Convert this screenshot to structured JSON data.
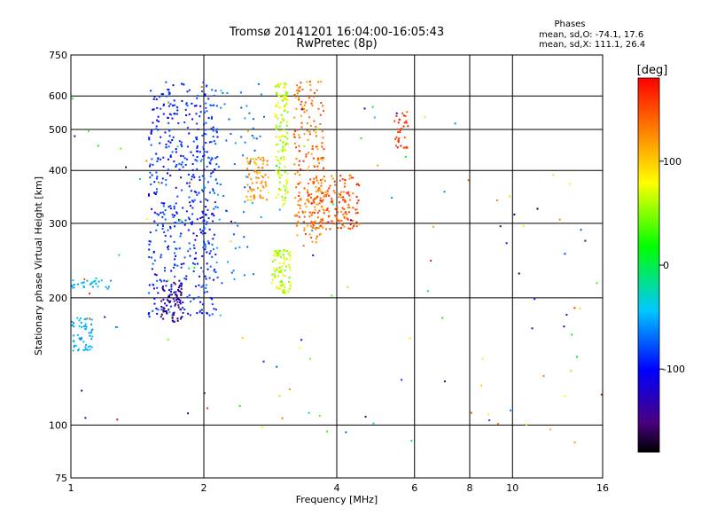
{
  "chart_data": {
    "type": "scatter",
    "title": "Tromsø 20141201 16:04:00-16:05:43",
    "subtitle": "RwPretec (8p)",
    "xlabel": "Frequency [MHz]",
    "ylabel": "Stationary phase Virtual Height [km]",
    "x_scale": "log",
    "y_scale": "log",
    "xlim": [
      1,
      16
    ],
    "ylim": [
      75,
      750
    ],
    "x_ticks": [
      1,
      2,
      4,
      6,
      8,
      10,
      16
    ],
    "y_ticks": [
      75,
      100,
      200,
      300,
      400,
      500,
      600,
      750
    ],
    "x_tick_labels": [
      "1",
      "2",
      "4",
      "6",
      "8",
      "10",
      "16"
    ],
    "y_tick_labels": [
      "75",
      "100",
      "200",
      "300",
      "400",
      "500",
      "600",
      "750"
    ],
    "grid": true,
    "phase_box": {
      "title": "Phases",
      "line_o": "mean, sd,O: -74.1, 17.6",
      "line_x": "mean, sd,X: 111.1, 26.4"
    },
    "colorbar": {
      "label": "[deg]",
      "range": [
        -180,
        180
      ],
      "ticks": [
        100,
        0,
        -100
      ],
      "tick_labels": [
        "100",
        "0",
        "-100"
      ],
      "colormap": "rainbow"
    },
    "clusters": [
      {
        "f": [
          1.5,
          2.15
        ],
        "h": [
          180,
          650
        ],
        "phase": [
          -110,
          -70
        ],
        "n": 520
      },
      {
        "f": [
          1.0,
          1.12
        ],
        "h": [
          150,
          180
        ],
        "phase": [
          -60,
          -40
        ],
        "n": 60
      },
      {
        "f": [
          1.0,
          1.25
        ],
        "h": [
          210,
          220
        ],
        "phase": [
          -60,
          -40
        ],
        "n": 30
      },
      {
        "f": [
          1.6,
          1.8
        ],
        "h": [
          175,
          220
        ],
        "phase": [
          -170,
          -120
        ],
        "n": 70
      },
      {
        "f": [
          2.5,
          2.8
        ],
        "h": [
          340,
          430
        ],
        "phase": [
          100,
          140
        ],
        "n": 70
      },
      {
        "f": [
          2.9,
          3.1
        ],
        "h": [
          330,
          650
        ],
        "phase": [
          40,
          90
        ],
        "n": 130
      },
      {
        "f": [
          2.85,
          3.15
        ],
        "h": [
          205,
          260
        ],
        "phase": [
          40,
          90
        ],
        "n": 90
      },
      {
        "f": [
          3.2,
          3.75
        ],
        "h": [
          270,
          650
        ],
        "phase": [
          110,
          160
        ],
        "n": 210
      },
      {
        "f": [
          3.5,
          4.5
        ],
        "h": [
          290,
          390
        ],
        "phase": [
          120,
          170
        ],
        "n": 160
      },
      {
        "f": [
          5.4,
          5.8
        ],
        "h": [
          450,
          560
        ],
        "phase": [
          140,
          175
        ],
        "n": 35
      },
      {
        "f": [
          2.0,
          2.7
        ],
        "h": [
          210,
          650
        ],
        "phase": [
          -80,
          -50
        ],
        "n": 80
      },
      {
        "f": [
          1.0,
          16.0
        ],
        "h": [
          90,
          650
        ],
        "phase": [
          -180,
          180
        ],
        "n": 130
      }
    ]
  }
}
